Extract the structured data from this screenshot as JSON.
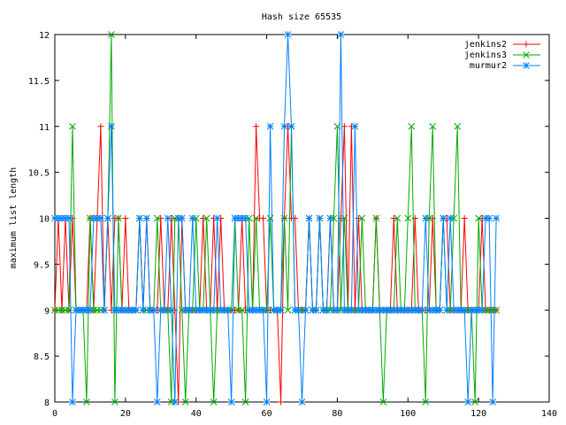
{
  "chart_data": {
    "type": "line",
    "title": "Hash size 65535",
    "xlabel": "",
    "ylabel": "maximum list length",
    "xlim": [
      0,
      140
    ],
    "ylim": [
      8,
      12
    ],
    "xticks": [
      "0",
      "20",
      "40",
      "60",
      "80",
      "100",
      "120",
      "140"
    ],
    "yticks": [
      "8",
      "8.5",
      "9",
      "9.5",
      "10",
      "10.5",
      "11",
      "11.5",
      "12"
    ],
    "grid": false,
    "legend_position": "top-right",
    "series": [
      {
        "name": "jenkins2",
        "color": "#ff0000",
        "marker": "plus",
        "values": [
          9,
          10,
          9,
          10,
          9,
          10,
          9,
          9,
          9,
          9,
          10,
          9,
          10,
          11,
          9,
          10,
          9,
          10,
          10,
          9,
          10,
          9,
          9,
          9,
          10,
          9,
          10,
          9,
          9,
          9,
          10,
          9,
          9,
          10,
          9,
          8,
          10,
          9,
          9,
          9,
          9,
          9,
          10,
          9,
          9,
          10,
          9,
          10,
          9,
          9,
          9,
          9,
          9,
          10,
          9,
          9,
          9,
          11,
          10,
          10,
          9,
          9,
          9,
          9,
          8,
          10,
          11,
          10,
          10,
          9,
          9,
          9,
          10,
          9,
          9,
          10,
          9,
          9,
          10,
          9,
          9,
          10,
          11,
          9,
          11,
          9,
          10,
          9,
          9,
          9,
          9,
          10,
          9,
          9,
          9,
          9,
          10,
          9,
          9,
          9,
          9,
          9,
          10,
          9,
          9,
          9,
          9,
          10,
          9,
          9,
          10,
          10,
          9,
          9,
          9,
          9,
          10,
          9,
          9,
          9,
          9,
          10,
          9,
          9,
          9,
          9
        ]
      },
      {
        "name": "jenkins3",
        "color": "#00aa00",
        "marker": "cross",
        "values": [
          9,
          9,
          9,
          9,
          9,
          11,
          9,
          9,
          9,
          8,
          10,
          9,
          9,
          9,
          9,
          10,
          12,
          8,
          10,
          9,
          9,
          9,
          9,
          9,
          10,
          9,
          9,
          9,
          9,
          10,
          9,
          9,
          9,
          8,
          10,
          10,
          9,
          8,
          9,
          9,
          10,
          9,
          9,
          10,
          9,
          8,
          9,
          9,
          9,
          9,
          9,
          10,
          9,
          9,
          8,
          10,
          9,
          10,
          9,
          9,
          9,
          10,
          9,
          9,
          9,
          10,
          9,
          11,
          9,
          9,
          9,
          9,
          10,
          9,
          9,
          10,
          9,
          9,
          9,
          10,
          11,
          9,
          10,
          9,
          9,
          9,
          9,
          10,
          9,
          9,
          9,
          10,
          9,
          8,
          9,
          9,
          9,
          10,
          9,
          9,
          10,
          11,
          9,
          9,
          9,
          8,
          10,
          11,
          9,
          9,
          10,
          9,
          9,
          10,
          11,
          9,
          9,
          9,
          9,
          8,
          10,
          9,
          9,
          9,
          9,
          9
        ]
      },
      {
        "name": "murmur2",
        "color": "#0080ff",
        "marker": "star",
        "values": [
          10,
          10,
          10,
          10,
          10,
          8,
          9,
          9,
          9,
          9,
          9,
          10,
          10,
          10,
          9,
          10,
          11,
          9,
          9,
          9,
          9,
          9,
          9,
          9,
          10,
          9,
          10,
          9,
          9,
          8,
          9,
          9,
          10,
          9,
          8,
          10,
          10,
          9,
          9,
          10,
          9,
          9,
          9,
          9,
          9,
          9,
          10,
          9,
          9,
          9,
          8,
          10,
          10,
          10,
          10,
          9,
          9,
          9,
          9,
          9,
          8,
          11,
          9,
          9,
          9,
          11,
          12,
          11,
          9,
          9,
          8,
          9,
          10,
          9,
          9,
          10,
          9,
          9,
          10,
          9,
          9,
          12,
          9,
          9,
          9,
          11,
          9,
          9,
          9,
          9,
          9,
          9,
          9,
          9,
          9,
          9,
          9,
          9,
          9,
          9,
          9,
          9,
          9,
          9,
          9,
          10,
          9,
          9,
          9,
          9,
          10,
          9,
          10,
          9,
          9,
          9,
          9,
          8,
          9,
          9,
          9,
          9,
          10,
          10,
          8,
          10
        ]
      }
    ]
  }
}
